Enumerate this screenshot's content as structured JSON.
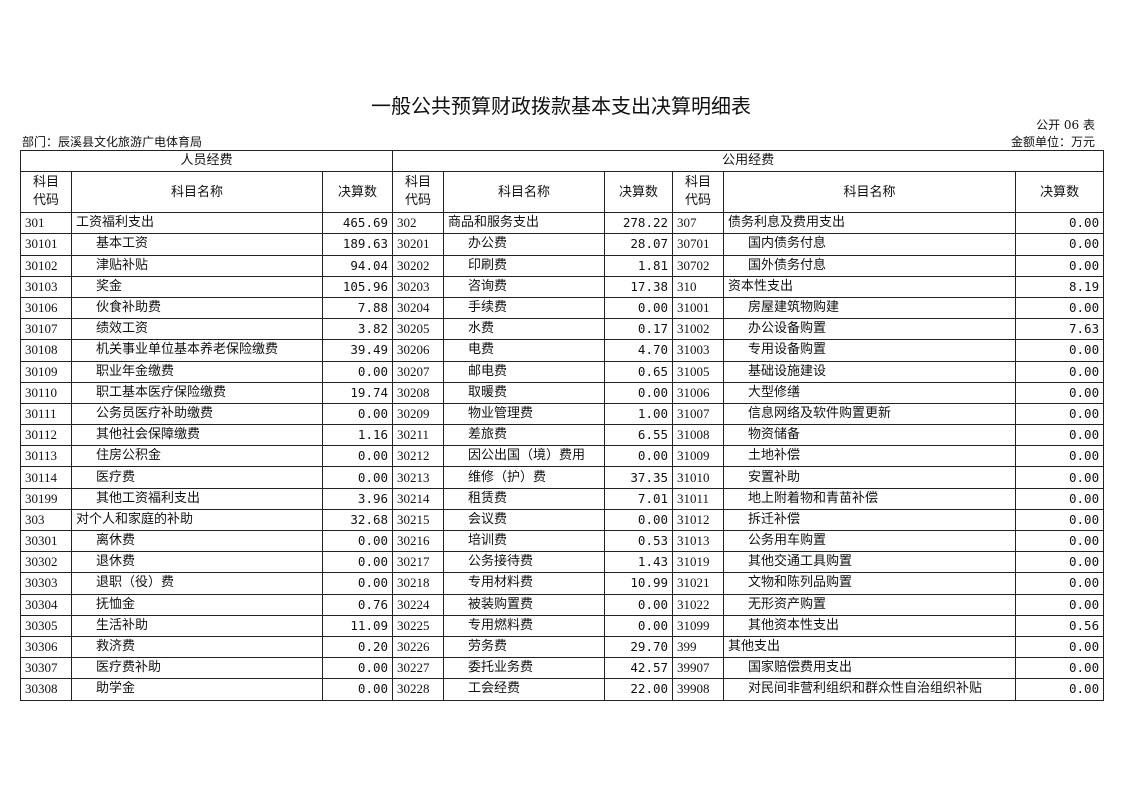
{
  "title": "一般公共预算财政拨款基本支出决算明细表",
  "form_no": "公开 06 表",
  "department": "部门：辰溪县文化旅游广电体育局",
  "unit": "金额单位：万元",
  "groups": {
    "personnel": "人员经费",
    "public": "公用经费"
  },
  "columns": {
    "code": "科目代码",
    "name": "科目名称",
    "amount": "决算数"
  },
  "rows": [
    [
      "301",
      "工资福利支出",
      "465.69",
      "302",
      "商品和服务支出",
      "278.22",
      "307",
      "债务利息及费用支出",
      "0.00"
    ],
    [
      "30101",
      "基本工资",
      "189.63",
      "30201",
      "办公费",
      "28.07",
      "30701",
      "国内债务付息",
      "0.00"
    ],
    [
      "30102",
      "津贴补贴",
      "94.04",
      "30202",
      "印刷费",
      "1.81",
      "30702",
      "国外债务付息",
      "0.00"
    ],
    [
      "30103",
      "奖金",
      "105.96",
      "30203",
      "咨询费",
      "17.38",
      "310",
      "资本性支出",
      "8.19"
    ],
    [
      "30106",
      "伙食补助费",
      "7.88",
      "30204",
      "手续费",
      "0.00",
      "31001",
      "房屋建筑物购建",
      "0.00"
    ],
    [
      "30107",
      "绩效工资",
      "3.82",
      "30205",
      "水费",
      "0.17",
      "31002",
      "办公设备购置",
      "7.63"
    ],
    [
      "30108",
      "机关事业单位基本养老保险缴费",
      "39.49",
      "30206",
      "电费",
      "4.70",
      "31003",
      "专用设备购置",
      "0.00"
    ],
    [
      "30109",
      "职业年金缴费",
      "0.00",
      "30207",
      "邮电费",
      "0.65",
      "31005",
      "基础设施建设",
      "0.00"
    ],
    [
      "30110",
      "职工基本医疗保险缴费",
      "19.74",
      "30208",
      "取暖费",
      "0.00",
      "31006",
      "大型修缮",
      "0.00"
    ],
    [
      "30111",
      "公务员医疗补助缴费",
      "0.00",
      "30209",
      "物业管理费",
      "1.00",
      "31007",
      "信息网络及软件购置更新",
      "0.00"
    ],
    [
      "30112",
      "其他社会保障缴费",
      "1.16",
      "30211",
      "差旅费",
      "6.55",
      "31008",
      "物资储备",
      "0.00"
    ],
    [
      "30113",
      "住房公积金",
      "0.00",
      "30212",
      "因公出国（境）费用",
      "0.00",
      "31009",
      "土地补偿",
      "0.00"
    ],
    [
      "30114",
      "医疗费",
      "0.00",
      "30213",
      "维修（护）费",
      "37.35",
      "31010",
      "安置补助",
      "0.00"
    ],
    [
      "30199",
      "其他工资福利支出",
      "3.96",
      "30214",
      "租赁费",
      "7.01",
      "31011",
      "地上附着物和青苗补偿",
      "0.00"
    ],
    [
      "303",
      "对个人和家庭的补助",
      "32.68",
      "30215",
      "会议费",
      "0.00",
      "31012",
      "拆迁补偿",
      "0.00"
    ],
    [
      "30301",
      "离休费",
      "0.00",
      "30216",
      "培训费",
      "0.53",
      "31013",
      "公务用车购置",
      "0.00"
    ],
    [
      "30302",
      "退休费",
      "0.00",
      "30217",
      "公务接待费",
      "1.43",
      "31019",
      "其他交通工具购置",
      "0.00"
    ],
    [
      "30303",
      "退职（役）费",
      "0.00",
      "30218",
      "专用材料费",
      "10.99",
      "31021",
      "文物和陈列品购置",
      "0.00"
    ],
    [
      "30304",
      "抚恤金",
      "0.76",
      "30224",
      "被装购置费",
      "0.00",
      "31022",
      "无形资产购置",
      "0.00"
    ],
    [
      "30305",
      "生活补助",
      "11.09",
      "30225",
      "专用燃料费",
      "0.00",
      "31099",
      "其他资本性支出",
      "0.56"
    ],
    [
      "30306",
      "救济费",
      "0.20",
      "30226",
      "劳务费",
      "29.70",
      "399",
      "其他支出",
      "0.00"
    ],
    [
      "30307",
      "医疗费补助",
      "0.00",
      "30227",
      "委托业务费",
      "42.57",
      "39907",
      "国家赔偿费用支出",
      "0.00"
    ],
    [
      "30308",
      "助学金",
      "0.00",
      "30228",
      "工会经费",
      "22.00",
      "39908",
      "对民间非营利组织和群众性自治组织补贴",
      "0.00"
    ]
  ]
}
